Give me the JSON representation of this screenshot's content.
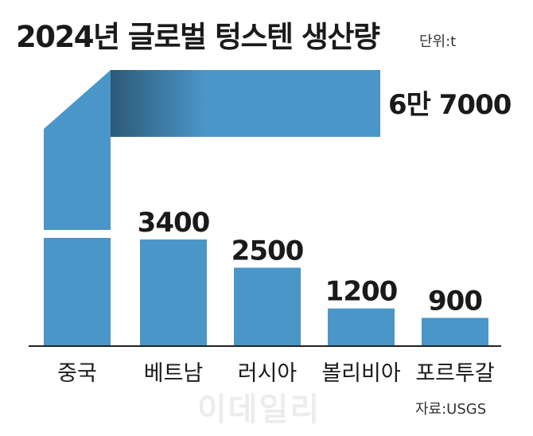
{
  "header": {
    "title": "2024년 글로벌 텅스텐 생산량",
    "unit": "단위:t"
  },
  "footer": {
    "source": "자료:USGS",
    "watermark": "이데일리"
  },
  "colors": {
    "bar": "#4a96c8",
    "bar_shadow": "#2c5a78",
    "axis": "#222222",
    "text": "#1a1a1a"
  },
  "chart_data": {
    "type": "bar",
    "title": "2024년 글로벌 텅스텐 생산량",
    "unit": "단위:t",
    "categories": [
      "중국",
      "베트남",
      "러시아",
      "볼리비아",
      "포르투갈"
    ],
    "values": [
      67000,
      3400,
      2500,
      1200,
      900
    ],
    "value_labels": [
      "6만 7000",
      "3400",
      "2500",
      "1200",
      "900"
    ],
    "broken_bar": "중국",
    "xlabel": "",
    "ylabel": "",
    "grid": false
  }
}
